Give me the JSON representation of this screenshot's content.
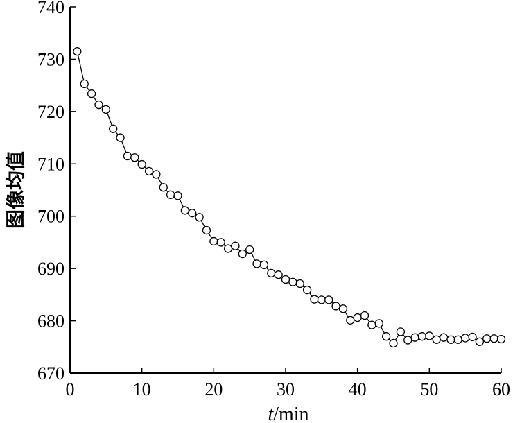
{
  "chart_data": {
    "type": "line",
    "title": "",
    "xlabel_var": "t",
    "xlabel_unit": "/min",
    "ylabel": "图像均值",
    "xlim": [
      0,
      60
    ],
    "ylim": [
      670,
      740
    ],
    "xticks": [
      0,
      10,
      20,
      30,
      40,
      50,
      60
    ],
    "yticks": [
      670,
      680,
      690,
      700,
      710,
      720,
      730,
      740
    ],
    "grid": false,
    "series": [
      {
        "marker": "open-circle",
        "color": "#000000",
        "x": [
          1,
          2,
          3,
          4,
          5,
          6,
          7,
          8,
          9,
          10,
          11,
          12,
          13,
          14,
          15,
          16,
          17,
          18,
          19,
          20,
          21,
          22,
          23,
          24,
          25,
          26,
          27,
          28,
          29,
          30,
          31,
          32,
          33,
          34,
          35,
          36,
          37,
          38,
          39,
          40,
          41,
          42,
          43,
          44,
          45,
          46,
          47,
          48,
          49,
          50,
          51,
          52,
          53,
          54,
          55,
          56,
          57,
          58,
          59,
          60
        ],
        "y": [
          731.5,
          725.3,
          723.4,
          721.3,
          720.4,
          716.7,
          715.0,
          711.5,
          711.2,
          709.9,
          708.6,
          708.0,
          705.5,
          704.1,
          703.9,
          701.1,
          700.6,
          699.8,
          697.3,
          695.2,
          695.0,
          693.8,
          694.3,
          692.8,
          693.6,
          690.9,
          690.7,
          689.1,
          688.8,
          687.9,
          687.4,
          687.1,
          685.9,
          684.1,
          684.0,
          684.0,
          682.8,
          682.3,
          680.1,
          680.6,
          681.0,
          679.2,
          679.5,
          677.0,
          675.7,
          677.9,
          676.3,
          676.8,
          677.0,
          677.1,
          676.4,
          676.8,
          676.4,
          676.4,
          676.7,
          676.9,
          676.0,
          676.6,
          676.6,
          676.5
        ]
      }
    ]
  }
}
